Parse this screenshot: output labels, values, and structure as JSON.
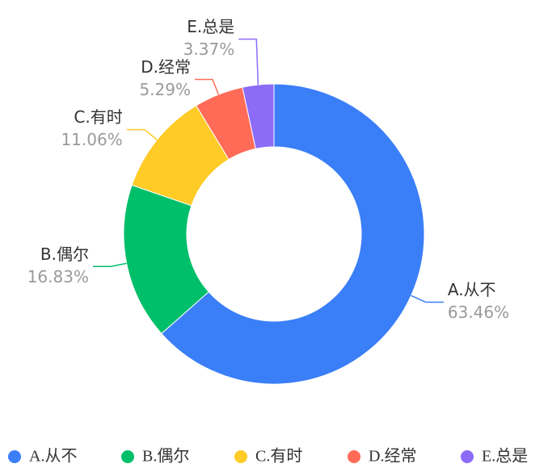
{
  "chart_data": {
    "type": "donut",
    "categories": [
      "A.从不",
      "B.偶尔",
      "C.有时",
      "D.经常",
      "E.总是"
    ],
    "values": [
      63.46,
      16.83,
      11.06,
      5.29,
      3.37
    ],
    "value_labels": [
      "63.46%",
      "16.83%",
      "11.06%",
      "5.29%",
      "3.37%"
    ],
    "colors": [
      "#3a7ef8",
      "#00bf6a",
      "#ffcb27",
      "#ff6b57",
      "#8c6cf7"
    ],
    "legend": "bottom"
  }
}
